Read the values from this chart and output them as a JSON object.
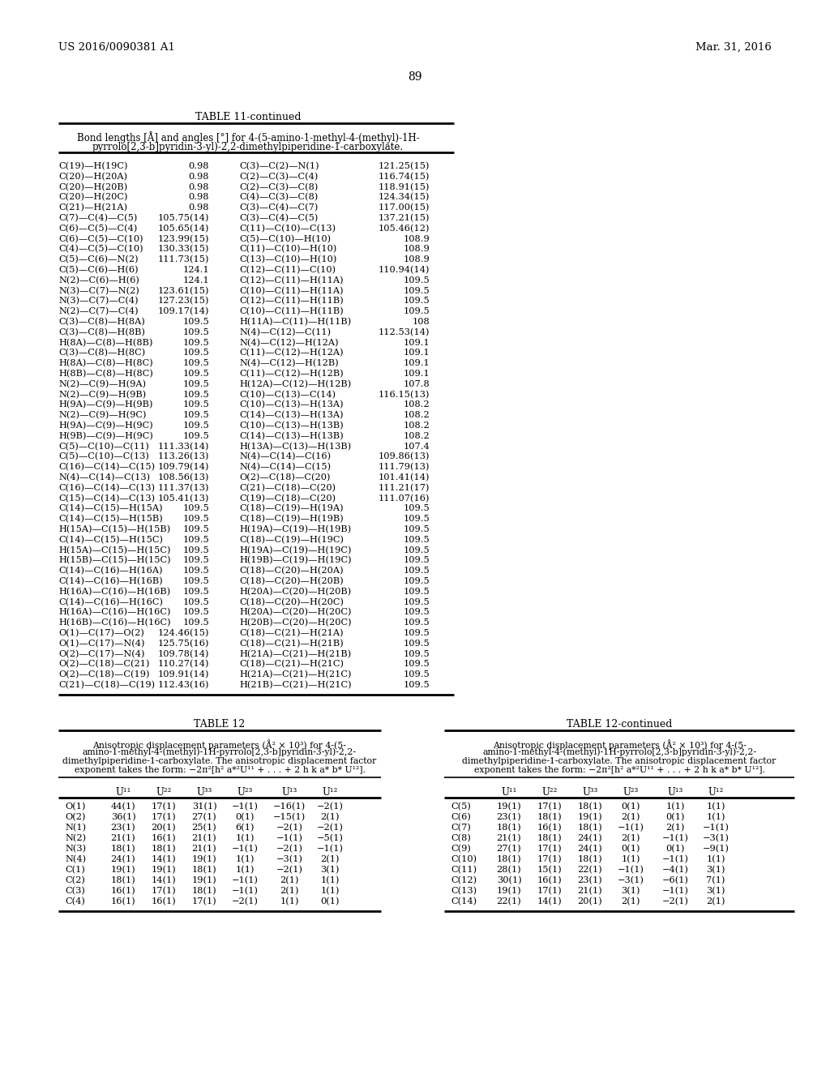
{
  "header_left": "US 2016/0090381 A1",
  "header_right": "Mar. 31, 2016",
  "page_number": "89",
  "table11_title": "TABLE 11-continued",
  "table11_caption_line1": "Bond lengths [Å] and angles [°] for 4-(5-amino-1-methyl-4-(methyl)-1H-",
  "table11_caption_line2": "pyrrolo[2,3-b]pyridin-3-yl)-2,2-dimethylpiperidine-1-carboxylate.",
  "table11_left": [
    [
      "C(19)—H(19C)",
      "0.98"
    ],
    [
      "C(20)—H(20A)",
      "0.98"
    ],
    [
      "C(20)—H(20B)",
      "0.98"
    ],
    [
      "C(20)—H(20C)",
      "0.98"
    ],
    [
      "C(21)—H(21A)",
      "0.98"
    ],
    [
      "C(7)—C(4)—C(5)",
      "105.75(14)"
    ],
    [
      "C(6)—C(5)—C(4)",
      "105.65(14)"
    ],
    [
      "C(6)—C(5)—C(10)",
      "123.99(15)"
    ],
    [
      "C(4)—C(5)—C(10)",
      "130.33(15)"
    ],
    [
      "C(5)—C(6)—N(2)",
      "111.73(15)"
    ],
    [
      "C(5)—C(6)—H(6)",
      "124.1"
    ],
    [
      "N(2)—C(6)—H(6)",
      "124.1"
    ],
    [
      "N(3)—C(7)—N(2)",
      "123.61(15)"
    ],
    [
      "N(3)—C(7)—C(4)",
      "127.23(15)"
    ],
    [
      "N(2)—C(7)—C(4)",
      "109.17(14)"
    ],
    [
      "C(3)—C(8)—H(8A)",
      "109.5"
    ],
    [
      "C(3)—C(8)—H(8B)",
      "109.5"
    ],
    [
      "H(8A)—C(8)—H(8B)",
      "109.5"
    ],
    [
      "C(3)—C(8)—H(8C)",
      "109.5"
    ],
    [
      "H(8A)—C(8)—H(8C)",
      "109.5"
    ],
    [
      "H(8B)—C(8)—H(8C)",
      "109.5"
    ],
    [
      "N(2)—C(9)—H(9A)",
      "109.5"
    ],
    [
      "N(2)—C(9)—H(9B)",
      "109.5"
    ],
    [
      "H(9A)—C(9)—H(9B)",
      "109.5"
    ],
    [
      "N(2)—C(9)—H(9C)",
      "109.5"
    ],
    [
      "H(9A)—C(9)—H(9C)",
      "109.5"
    ],
    [
      "H(9B)—C(9)—H(9C)",
      "109.5"
    ],
    [
      "C(5)—C(10)—C(11)",
      "111.33(14)"
    ],
    [
      "C(5)—C(10)—C(13)",
      "113.26(13)"
    ],
    [
      "C(16)—C(14)—C(15)",
      "109.79(14)"
    ],
    [
      "N(4)—C(14)—C(13)",
      "108.56(13)"
    ],
    [
      "C(16)—C(14)—C(13)",
      "111.37(13)"
    ],
    [
      "C(15)—C(14)—C(13)",
      "105.41(13)"
    ],
    [
      "C(14)—C(15)—H(15A)",
      "109.5"
    ],
    [
      "C(14)—C(15)—H(15B)",
      "109.5"
    ],
    [
      "H(15A)—C(15)—H(15B)",
      "109.5"
    ],
    [
      "C(14)—C(15)—H(15C)",
      "109.5"
    ],
    [
      "H(15A)—C(15)—H(15C)",
      "109.5"
    ],
    [
      "H(15B)—C(15)—H(15C)",
      "109.5"
    ],
    [
      "C(14)—C(16)—H(16A)",
      "109.5"
    ],
    [
      "C(14)—C(16)—H(16B)",
      "109.5"
    ],
    [
      "H(16A)—C(16)—H(16B)",
      "109.5"
    ],
    [
      "C(14)—C(16)—H(16C)",
      "109.5"
    ],
    [
      "H(16A)—C(16)—H(16C)",
      "109.5"
    ],
    [
      "H(16B)—C(16)—H(16C)",
      "109.5"
    ],
    [
      "O(1)—C(17)—O(2)",
      "124.46(15)"
    ],
    [
      "O(1)—C(17)—N(4)",
      "125.75(16)"
    ],
    [
      "O(2)—C(17)—N(4)",
      "109.78(14)"
    ],
    [
      "O(2)—C(18)—C(21)",
      "110.27(14)"
    ],
    [
      "O(2)—C(18)—C(19)",
      "109.91(14)"
    ],
    [
      "C(21)—C(18)—C(19)",
      "112.43(16)"
    ]
  ],
  "table11_right": [
    [
      "C(3)—C(2)—N(1)",
      "121.25(15)"
    ],
    [
      "C(2)—C(3)—C(4)",
      "116.74(15)"
    ],
    [
      "C(2)—C(3)—C(8)",
      "118.91(15)"
    ],
    [
      "C(4)—C(3)—C(8)",
      "124.34(15)"
    ],
    [
      "C(3)—C(4)—C(7)",
      "117.00(15)"
    ],
    [
      "C(3)—C(4)—C(5)",
      "137.21(15)"
    ],
    [
      "C(11)—C(10)—C(13)",
      "105.46(12)"
    ],
    [
      "C(5)—C(10)—H(10)",
      "108.9"
    ],
    [
      "C(11)—C(10)—H(10)",
      "108.9"
    ],
    [
      "C(13)—C(10)—H(10)",
      "108.9"
    ],
    [
      "C(12)—C(11)—C(10)",
      "110.94(14)"
    ],
    [
      "C(12)—C(11)—H(11A)",
      "109.5"
    ],
    [
      "C(10)—C(11)—H(11A)",
      "109.5"
    ],
    [
      "C(12)—C(11)—H(11B)",
      "109.5"
    ],
    [
      "C(10)—C(11)—H(11B)",
      "109.5"
    ],
    [
      "H(11A)—C(11)—H(11B)",
      "108"
    ],
    [
      "N(4)—C(12)—C(11)",
      "112.53(14)"
    ],
    [
      "N(4)—C(12)—H(12A)",
      "109.1"
    ],
    [
      "C(11)—C(12)—H(12A)",
      "109.1"
    ],
    [
      "N(4)—C(12)—H(12B)",
      "109.1"
    ],
    [
      "C(11)—C(12)—H(12B)",
      "109.1"
    ],
    [
      "H(12A)—C(12)—H(12B)",
      "107.8"
    ],
    [
      "C(10)—C(13)—C(14)",
      "116.15(13)"
    ],
    [
      "C(10)—C(13)—H(13A)",
      "108.2"
    ],
    [
      "C(14)—C(13)—H(13A)",
      "108.2"
    ],
    [
      "C(10)—C(13)—H(13B)",
      "108.2"
    ],
    [
      "C(14)—C(13)—H(13B)",
      "108.2"
    ],
    [
      "H(13A)—C(13)—H(13B)",
      "107.4"
    ],
    [
      "N(4)—C(14)—C(16)",
      "109.86(13)"
    ],
    [
      "N(4)—C(14)—C(15)",
      "111.79(13)"
    ],
    [
      "O(2)—C(18)—C(20)",
      "101.41(14)"
    ],
    [
      "C(21)—C(18)—C(20)",
      "111.21(17)"
    ],
    [
      "C(19)—C(18)—C(20)",
      "111.07(16)"
    ],
    [
      "C(18)—C(19)—H(19A)",
      "109.5"
    ],
    [
      "C(18)—C(19)—H(19B)",
      "109.5"
    ],
    [
      "H(19A)—C(19)—H(19B)",
      "109.5"
    ],
    [
      "C(18)—C(19)—H(19C)",
      "109.5"
    ],
    [
      "H(19A)—C(19)—H(19C)",
      "109.5"
    ],
    [
      "H(19B)—C(19)—H(19C)",
      "109.5"
    ],
    [
      "C(18)—C(20)—H(20A)",
      "109.5"
    ],
    [
      "C(18)—C(20)—H(20B)",
      "109.5"
    ],
    [
      "H(20A)—C(20)—H(20B)",
      "109.5"
    ],
    [
      "C(18)—C(20)—H(20C)",
      "109.5"
    ],
    [
      "H(20A)—C(20)—H(20C)",
      "109.5"
    ],
    [
      "H(20B)—C(20)—H(20C)",
      "109.5"
    ],
    [
      "C(18)—C(21)—H(21A)",
      "109.5"
    ],
    [
      "C(18)—C(21)—H(21B)",
      "109.5"
    ],
    [
      "H(21A)—C(21)—H(21B)",
      "109.5"
    ],
    [
      "C(18)—C(21)—H(21C)",
      "109.5"
    ],
    [
      "H(21A)—C(21)—H(21C)",
      "109.5"
    ],
    [
      "H(21B)—C(21)—H(21C)",
      "109.5"
    ]
  ],
  "table12_title": "TABLE 12",
  "table12cont_title": "TABLE 12-continued",
  "table12_caption_lines": [
    "Anisotropic displacement parameters (Å² × 10³) for 4-(5-",
    "amino-1-methyl-4-(methyl)-1H-pyrrolo[2,3-b]pyridin-3-yl)-2,2-",
    "dimethylpiperidine-1-carboxylate. The anisotropic displacement factor",
    "exponent takes the form: −2π²[h² a*²U¹¹ + . . . + 2 h k a* b* U¹²]."
  ],
  "table12_headers": [
    "",
    "U¹¹",
    "U²²",
    "U³³",
    "U²³",
    "U¹³",
    "U¹²"
  ],
  "table12_left_data": [
    [
      "O(1)",
      "44(1)",
      "17(1)",
      "31(1)",
      "−1(1)",
      "−16(1)",
      "−2(1)"
    ],
    [
      "O(2)",
      "36(1)",
      "17(1)",
      "27(1)",
      "0(1)",
      "−15(1)",
      "2(1)"
    ],
    [
      "N(1)",
      "23(1)",
      "20(1)",
      "25(1)",
      "6(1)",
      "−2(1)",
      "−2(1)"
    ],
    [
      "N(2)",
      "21(1)",
      "16(1)",
      "21(1)",
      "1(1)",
      "−1(1)",
      "−5(1)"
    ],
    [
      "N(3)",
      "18(1)",
      "18(1)",
      "21(1)",
      "−1(1)",
      "−2(1)",
      "−1(1)"
    ],
    [
      "N(4)",
      "24(1)",
      "14(1)",
      "19(1)",
      "1(1)",
      "−3(1)",
      "2(1)"
    ],
    [
      "C(1)",
      "19(1)",
      "19(1)",
      "18(1)",
      "1(1)",
      "−2(1)",
      "3(1)"
    ],
    [
      "C(2)",
      "18(1)",
      "14(1)",
      "19(1)",
      "−1(1)",
      "2(1)",
      "1(1)"
    ],
    [
      "C(3)",
      "16(1)",
      "17(1)",
      "18(1)",
      "−1(1)",
      "2(1)",
      "1(1)"
    ],
    [
      "C(4)",
      "16(1)",
      "16(1)",
      "17(1)",
      "−2(1)",
      "1(1)",
      "0(1)"
    ]
  ],
  "table12_right_data": [
    [
      "C(5)",
      "19(1)",
      "17(1)",
      "18(1)",
      "0(1)",
      "1(1)",
      "1(1)"
    ],
    [
      "C(6)",
      "23(1)",
      "18(1)",
      "19(1)",
      "2(1)",
      "0(1)",
      "1(1)"
    ],
    [
      "C(7)",
      "18(1)",
      "16(1)",
      "18(1)",
      "−1(1)",
      "2(1)",
      "−1(1)"
    ],
    [
      "C(8)",
      "21(1)",
      "18(1)",
      "24(1)",
      "2(1)",
      "−1(1)",
      "−3(1)"
    ],
    [
      "C(9)",
      "27(1)",
      "17(1)",
      "24(1)",
      "0(1)",
      "0(1)",
      "−9(1)"
    ],
    [
      "C(10)",
      "18(1)",
      "17(1)",
      "18(1)",
      "1(1)",
      "−1(1)",
      "1(1)"
    ],
    [
      "C(11)",
      "28(1)",
      "15(1)",
      "22(1)",
      "−1(1)",
      "−4(1)",
      "3(1)"
    ],
    [
      "C(12)",
      "30(1)",
      "16(1)",
      "23(1)",
      "−3(1)",
      "−6(1)",
      "7(1)"
    ],
    [
      "C(13)",
      "19(1)",
      "17(1)",
      "21(1)",
      "3(1)",
      "−1(1)",
      "3(1)"
    ],
    [
      "C(14)",
      "22(1)",
      "14(1)",
      "20(1)",
      "2(1)",
      "−2(1)",
      "2(1)"
    ]
  ],
  "bg_color": "#ffffff",
  "text_color": "#000000",
  "line_color": "#000000"
}
